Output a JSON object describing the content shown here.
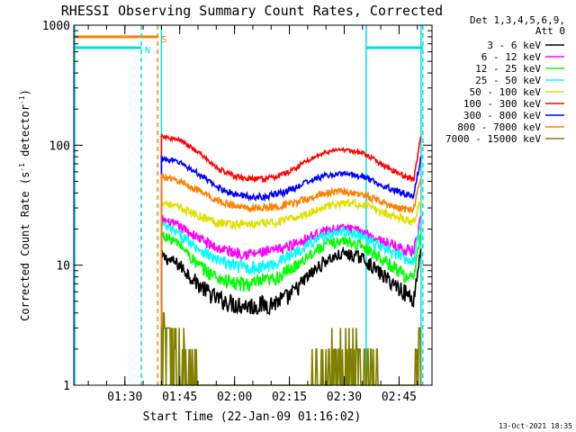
{
  "chart_data": {
    "type": "line",
    "title": "RHESSI Observing Summary Count Rates, Corrected",
    "xlabel": "Start Time (22-Jan-09 01:16:02)",
    "ylabel_main": "Corrected Count Rate (s",
    "ylabel_sup1": "-1",
    "ylabel_mid": " detector",
    "ylabel_sup2": "-1",
    "ylabel_end": ")",
    "yscale": "log",
    "ylim": [
      1,
      1000
    ],
    "xlim": [
      "01:16:02",
      "02:54:00"
    ],
    "x_ticks": [
      "01:30",
      "01:45",
      "02:00",
      "02:15",
      "02:30",
      "02:45"
    ],
    "y_ticks": [
      "1",
      "10",
      "100",
      "1000"
    ],
    "timestamp": "13-Oct-2021 18:35",
    "legend": {
      "header1": "Det 1,3,4,5,6,9,",
      "header2": "Att 0",
      "position": "top-right"
    },
    "flags": [
      {
        "name": "S",
        "color": "#ff8000",
        "segments": [
          [
            "01:16:02",
            "01:39:00"
          ]
        ],
        "value": 800
      },
      {
        "name": "N",
        "color": "#00e0e0",
        "segments": [
          [
            "01:16:02",
            "01:34:30"
          ],
          [
            "02:36:00",
            "02:51:30"
          ]
        ],
        "value": 650
      }
    ],
    "vertical_lines": [
      {
        "time": "01:34:30",
        "color": "#00e0e0",
        "style": "dashed"
      },
      {
        "time": "01:39:00",
        "color": "#ff8000",
        "style": "dashed"
      },
      {
        "time": "02:51:30",
        "color": "#00e0e0",
        "style": "dashed"
      },
      {
        "time": "01:16:02",
        "color": "#00e0e0",
        "style": "solid"
      },
      {
        "time": "01:40:00",
        "color": "#00e0e0",
        "style": "solid"
      },
      {
        "time": "02:36:00",
        "color": "#00e0e0",
        "style": "solid"
      },
      {
        "time": "02:51:00",
        "color": "#00e0e0",
        "style": "solid"
      }
    ],
    "series": [
      {
        "name": "3 - 6 keV",
        "color": "#000000",
        "x": [
          "01:40",
          "01:45",
          "01:50",
          "01:55",
          "02:00",
          "02:05",
          "02:10",
          "02:15",
          "02:20",
          "02:25",
          "02:30",
          "02:35",
          "02:40",
          "02:45",
          "02:49",
          "02:51"
        ],
        "values": [
          12,
          10,
          7,
          5.3,
          4.8,
          4.6,
          4.8,
          5.5,
          8,
          11,
          12.5,
          11.5,
          8.5,
          6.5,
          5.2,
          14
        ]
      },
      {
        "name": "6 - 12 keV",
        "color": "#ff00ff",
        "x": [
          "01:40",
          "01:45",
          "01:50",
          "01:55",
          "02:00",
          "02:05",
          "02:10",
          "02:15",
          "02:20",
          "02:25",
          "02:30",
          "02:35",
          "02:40",
          "02:45",
          "02:49",
          "02:51"
        ],
        "values": [
          24,
          21,
          17,
          14,
          12.8,
          12.5,
          13,
          14.5,
          17,
          19.5,
          20.5,
          19,
          16,
          14,
          13,
          25
        ]
      },
      {
        "name": "12 - 25 keV",
        "color": "#00ff00",
        "x": [
          "01:40",
          "01:45",
          "01:50",
          "01:55",
          "02:00",
          "02:05",
          "02:10",
          "02:15",
          "02:20",
          "02:25",
          "02:30",
          "02:35",
          "02:40",
          "02:45",
          "02:49",
          "02:51"
        ],
        "values": [
          18,
          15,
          10,
          8,
          7,
          7,
          7.5,
          9,
          12,
          15,
          16,
          14.5,
          11.5,
          9,
          7.5,
          20
        ]
      },
      {
        "name": "25 - 50 keV",
        "color": "#00ffff",
        "x": [
          "01:40",
          "01:45",
          "01:50",
          "01:55",
          "02:00",
          "02:05",
          "02:10",
          "02:15",
          "02:20",
          "02:25",
          "02:30",
          "02:35",
          "02:40",
          "02:45",
          "02:49",
          "02:51"
        ],
        "values": [
          22,
          18,
          14,
          11,
          10,
          9.5,
          10,
          12,
          15,
          18,
          19,
          17.5,
          14,
          12,
          11,
          23
        ]
      },
      {
        "name": "50 - 100 keV",
        "color": "#e0e000",
        "x": [
          "01:40",
          "01:45",
          "01:50",
          "01:55",
          "02:00",
          "02:05",
          "02:10",
          "02:15",
          "02:20",
          "02:25",
          "02:30",
          "02:35",
          "02:40",
          "02:45",
          "02:49",
          "02:51"
        ],
        "values": [
          34,
          30,
          26,
          23,
          22,
          22,
          22.5,
          24,
          27,
          31,
          33,
          32,
          28,
          25,
          23,
          36
        ]
      },
      {
        "name": "100 - 300 keV",
        "color": "#ff0000",
        "x": [
          "01:40",
          "01:45",
          "01:50",
          "01:55",
          "02:00",
          "02:05",
          "02:10",
          "02:15",
          "02:20",
          "02:25",
          "02:30",
          "02:35",
          "02:40",
          "02:45",
          "02:49",
          "02:51"
        ],
        "values": [
          118,
          110,
          88,
          65,
          55,
          52,
          53,
          60,
          75,
          88,
          92,
          86,
          70,
          58,
          52,
          120
        ]
      },
      {
        "name": "300 - 800 keV",
        "color": "#0000ff",
        "x": [
          "01:40",
          "01:45",
          "01:50",
          "01:55",
          "02:00",
          "02:05",
          "02:10",
          "02:15",
          "02:20",
          "02:25",
          "02:30",
          "02:35",
          "02:40",
          "02:45",
          "02:49",
          "02:51"
        ],
        "values": [
          78,
          72,
          58,
          45,
          39,
          37,
          38,
          42,
          50,
          56,
          58,
          55,
          47,
          41,
          38,
          80
        ]
      },
      {
        "name": "800 - 7000 keV",
        "color": "#ff8000",
        "x": [
          "01:40",
          "01:45",
          "01:50",
          "01:55",
          "02:00",
          "02:05",
          "02:10",
          "02:15",
          "02:20",
          "02:25",
          "02:30",
          "02:35",
          "02:40",
          "02:45",
          "02:49",
          "02:51"
        ],
        "values": [
          55,
          50,
          42,
          35,
          31,
          30,
          30.5,
          32,
          36,
          40,
          41,
          39,
          34,
          30,
          29,
          56
        ]
      },
      {
        "name": "7000 - 15000 keV",
        "color": "#808000",
        "x": [
          "01:40",
          "01:45",
          "01:50",
          "01:55",
          "02:00",
          "02:05",
          "02:10",
          "02:15",
          "02:20",
          "02:25",
          "02:30",
          "02:35",
          "02:40",
          "02:45",
          "02:49",
          "02:51"
        ],
        "values": [
          2.8,
          2.0,
          1.0,
          1.0,
          1.0,
          1.0,
          1.0,
          1.0,
          1.0,
          1.6,
          1.7,
          1.5,
          1.0,
          1.0,
          1.0,
          3.0
        ]
      }
    ]
  }
}
